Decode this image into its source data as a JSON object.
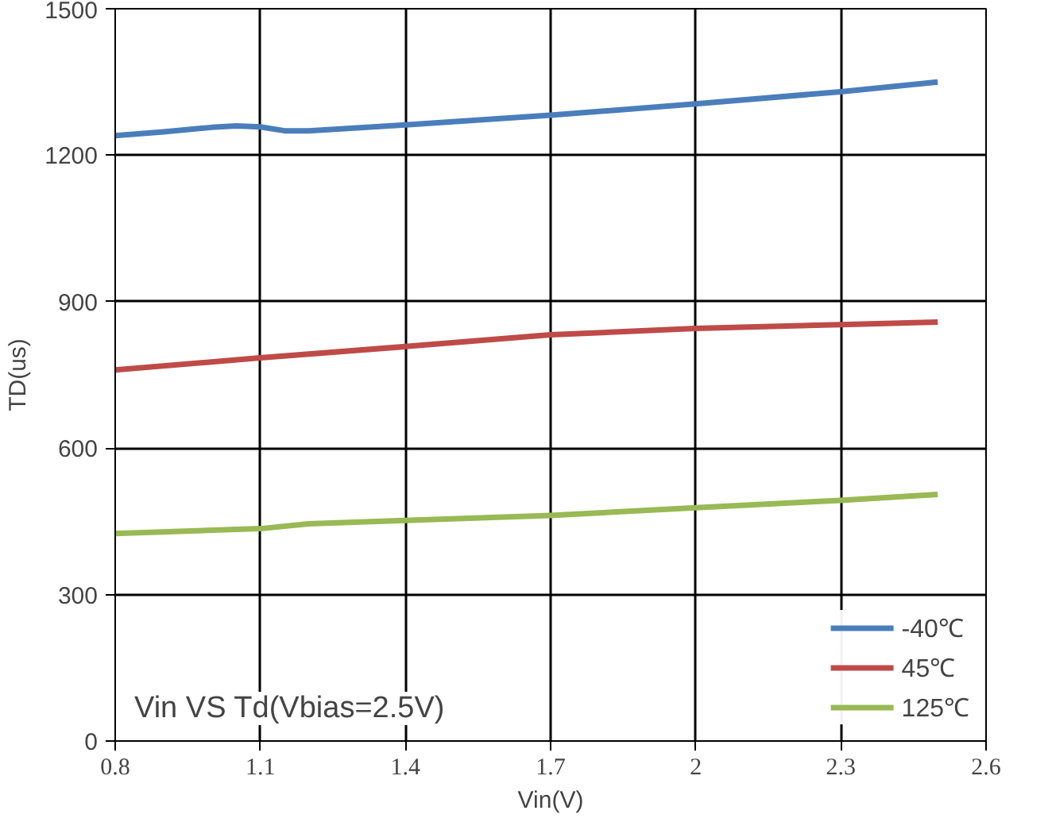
{
  "chart_data": {
    "type": "line",
    "xlabel": "Vin(V)",
    "ylabel": "TD(us)",
    "annotations": [
      "Vin VS Td(Vbias=2.5V)"
    ],
    "xlim": [
      0.8,
      2.6
    ],
    "xticks": [
      {
        "value": 0.8,
        "label": "0.8"
      },
      {
        "value": 1.1,
        "label": "1.1"
      },
      {
        "value": 1.4,
        "label": "1.4"
      },
      {
        "value": 1.7,
        "label": "1.7"
      },
      2,
      {
        "value": 2.3,
        "label": "2.3"
      },
      {
        "value": 2.6,
        "label": "2.6"
      }
    ],
    "ylim": [
      0,
      1500
    ],
    "yticks": [
      0,
      300,
      600,
      900,
      1200,
      1500
    ],
    "grid": true,
    "legend": "bottom right",
    "marker": "none",
    "line_style": "solid",
    "series": [
      {
        "name": "-40℃",
        "color": "#4a7ebb",
        "x": [
          0.8,
          0.9,
          1.0,
          1.05,
          1.1,
          1.15,
          1.2,
          1.4,
          1.7,
          2.0,
          2.3,
          2.5
        ],
        "values": [
          1240,
          1248,
          1257,
          1260,
          1258,
          1250,
          1250,
          1262,
          1282,
          1305,
          1330,
          1350
        ]
      },
      {
        "name": "45℃",
        "color": "#be4b48",
        "x": [
          0.8,
          1.1,
          1.4,
          1.7,
          2.0,
          2.3,
          2.5
        ],
        "values": [
          760,
          785,
          808,
          832,
          845,
          853,
          858
        ]
      },
      {
        "name": "125℃",
        "color": "#98b954",
        "x": [
          0.8,
          1.1,
          1.2,
          1.4,
          1.7,
          2.0,
          2.3,
          2.5
        ],
        "values": [
          425,
          435,
          445,
          452,
          462,
          478,
          493,
          505
        ]
      }
    ]
  }
}
